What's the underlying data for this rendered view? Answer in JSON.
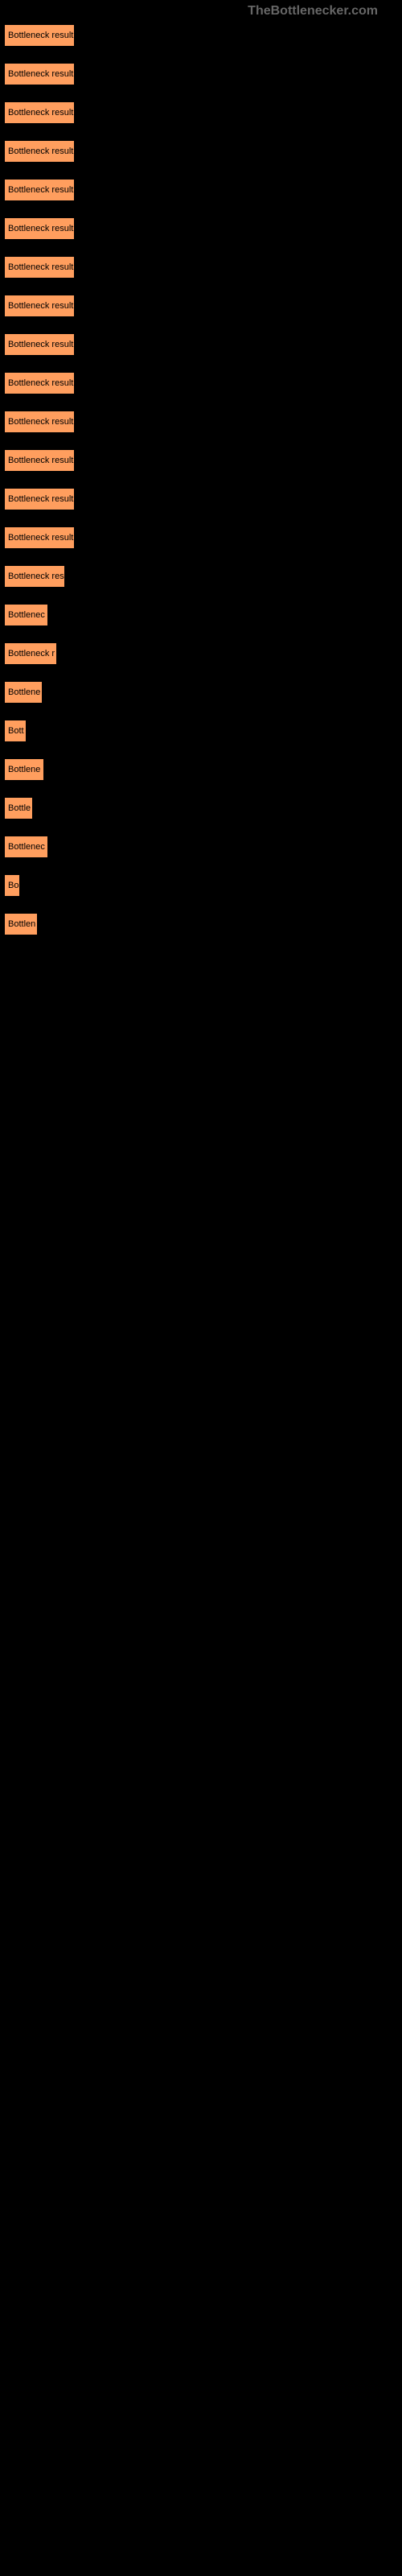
{
  "watermark": "TheBottlenecker.com",
  "chart": {
    "type": "bar",
    "bar_color": "#ff9e5e",
    "background_color": "#000000",
    "label_color": "#000000",
    "label_fontsize": 11,
    "max_width": 88,
    "bars": [
      {
        "label": "Bottleneck result",
        "width": 88
      },
      {
        "label": "Bottleneck result",
        "width": 88
      },
      {
        "label": "Bottleneck result",
        "width": 88
      },
      {
        "label": "Bottleneck result",
        "width": 88
      },
      {
        "label": "Bottleneck result",
        "width": 88
      },
      {
        "label": "Bottleneck result",
        "width": 88
      },
      {
        "label": "Bottleneck result",
        "width": 88
      },
      {
        "label": "Bottleneck result",
        "width": 88
      },
      {
        "label": "Bottleneck result",
        "width": 88
      },
      {
        "label": "Bottleneck result",
        "width": 88
      },
      {
        "label": "Bottleneck result",
        "width": 88
      },
      {
        "label": "Bottleneck result",
        "width": 88
      },
      {
        "label": "Bottleneck result",
        "width": 88
      },
      {
        "label": "Bottleneck result",
        "width": 88
      },
      {
        "label": "Bottleneck res",
        "width": 76
      },
      {
        "label": "Bottlenec",
        "width": 55
      },
      {
        "label": "Bottleneck r",
        "width": 66
      },
      {
        "label": "Bottlene",
        "width": 48
      },
      {
        "label": "Bott",
        "width": 28
      },
      {
        "label": "Bottlene",
        "width": 50
      },
      {
        "label": "Bottle",
        "width": 36
      },
      {
        "label": "Bottlenec",
        "width": 55
      },
      {
        "label": "Bo",
        "width": 20
      },
      {
        "label": "Bottlen",
        "width": 42
      }
    ]
  }
}
